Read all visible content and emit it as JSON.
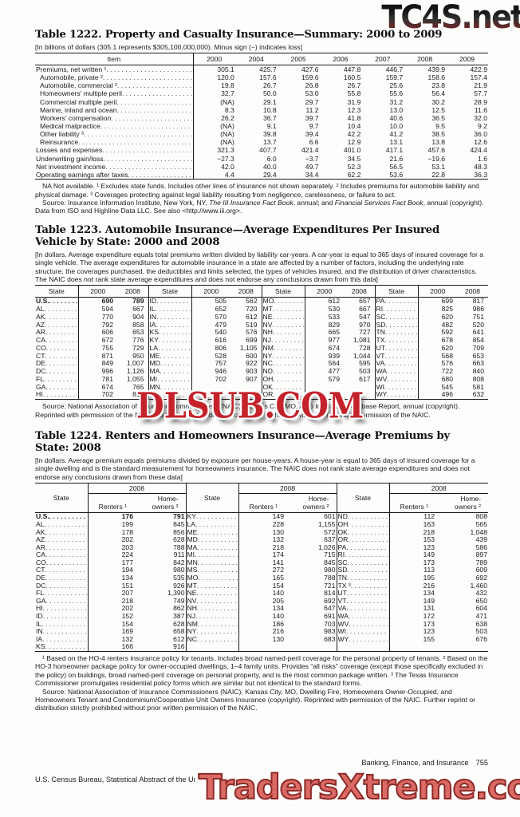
{
  "watermarks": {
    "top_right": "TC4S.net",
    "middle": "DLSUB.COM",
    "bottom": "TradersXtreme.com"
  },
  "table1222": {
    "title": "Table 1222. Property and Casualty Insurance—Summary: 2000 to 2009",
    "note": "[In billions of dollars (305.1 represents $305,100,000,000). Minus sign (−) indicates loss]",
    "col_headers": [
      "Item",
      "2000",
      "2004",
      "2005",
      "2006",
      "2007",
      "2008",
      "2009"
    ],
    "rows": [
      {
        "l": "Premiums, net written ¹",
        "ind": false,
        "v": [
          "305.1",
          "425.7",
          "427.6",
          "447.8",
          "446.7",
          "439.9",
          "422.9"
        ]
      },
      {
        "l": "Automobile, private ²",
        "ind": true,
        "v": [
          "120.0",
          "157.6",
          "159.6",
          "160.5",
          "159.7",
          "158.6",
          "157.4"
        ]
      },
      {
        "l": "Automobile, commercial ²",
        "ind": true,
        "v": [
          "19.8",
          "26.7",
          "26.8",
          "26.7",
          "25.6",
          "23.8",
          "21.9"
        ]
      },
      {
        "l": "Homeowners' multiple peril",
        "ind": true,
        "v": [
          "32.7",
          "50.0",
          "53.0",
          "55.8",
          "55.6",
          "56.4",
          "57.7"
        ]
      },
      {
        "l": "Commercial multiple peril",
        "ind": true,
        "v": [
          "(NA)",
          "29.1",
          "29.7",
          "31.9",
          "31.2",
          "30.2",
          "28.9"
        ]
      },
      {
        "l": "Marine, inland and ocean",
        "ind": true,
        "v": [
          "8.3",
          "10.8",
          "11.2",
          "12.3",
          "13.0",
          "12.5",
          "11.6"
        ]
      },
      {
        "l": "Workers' compensation",
        "ind": true,
        "v": [
          "26.2",
          "36.7",
          "39.7",
          "41.8",
          "40.6",
          "36.5",
          "32.0"
        ]
      },
      {
        "l": "Medical malpractice",
        "ind": true,
        "v": [
          "(NA)",
          "9.1",
          "9.7",
          "10.4",
          "10.0",
          "9.5",
          "9.2"
        ]
      },
      {
        "l": "Other liability ³",
        "ind": true,
        "v": [
          "(NA)",
          "39.8",
          "39.4",
          "42.2",
          "41.2",
          "38.5",
          "36.0"
        ]
      },
      {
        "l": "Reinsurance",
        "ind": true,
        "v": [
          "(NA)",
          "13.7",
          "6.6",
          "12.9",
          "13.1",
          "13.8",
          "12.6"
        ]
      },
      {
        "l": "Losses and expenses",
        "ind": false,
        "v": [
          "321.3",
          "407.7",
          "421.4",
          "401.0",
          "417.1",
          "457.6",
          "424.4"
        ]
      },
      {
        "l": "Underwriting gain/loss",
        "ind": false,
        "v": [
          "−27.3",
          "6.0",
          "−3.7",
          "34.5",
          "21.6",
          "−19.6",
          "1.6"
        ]
      },
      {
        "l": "Net investment income",
        "ind": false,
        "v": [
          "42.0",
          "40.0",
          "49.7",
          "52.3",
          "56.5",
          "53.1",
          "48.3"
        ]
      },
      {
        "l": "Operating earnings after taxes",
        "ind": false,
        "v": [
          "4.4",
          "29.4",
          "34.4",
          "62.2",
          "53.6",
          "22.8",
          "36.3"
        ]
      }
    ],
    "footnote": "NA Not available. ¹ Excludes state funds. Includes other lines of insurance not shown separately. ² Includes premiums for automobile liability and physical damage. ³ Coverages protecting against legal liability resulting from negligence, carelessness, or failure to act.",
    "source_parts": {
      "p0": "Source: Insurance Information Institute, New York, NY, ",
      "p1": "The III Insurance Fact Book",
      "p2": ", annual; and ",
      "p3": "Financial Services Fact Book",
      "p4": ", annual (copyright). Data from ISO and Highline Data LLC. See also <http://www.iii.org>."
    }
  },
  "table1223": {
    "title_l1": "Table 1223. Automobile Insurance—Average Expenditures Per Insured",
    "title_l2": "Vehicle by State: 2000 and 2008",
    "note": "[In dollars. Average expenditure equals total premiums written divided by liability car-years. A car-year is equal to 365 days of insured coverage for a single vehicle. The average expenditures for automobile insurance in a state are affected by a number of factors, including the underlying rate structure, the coverages purchased, the deductibles and limits selected, the types of vehicles insured, and the distribution of driver characteristics. The NAIC does not rank state average expenditures and does not endorse any conclusions drawn from this data]",
    "header": {
      "state": "State",
      "y2000": "2000",
      "y2008": "2008"
    },
    "rows": [
      [
        "U.S.",
        "690",
        "789",
        "ID",
        "505",
        "562",
        "MO",
        "612",
        "657",
        "PA",
        "699",
        "817"
      ],
      [
        "AL",
        "594",
        "667",
        "IL",
        "652",
        "720",
        "MT",
        "530",
        "667",
        "RI",
        "825",
        "986"
      ],
      [
        "AK",
        "770",
        "904",
        "IN",
        "570",
        "612",
        "NE",
        "533",
        "547",
        "SC",
        "620",
        "751"
      ],
      [
        "AZ",
        "792",
        "858",
        "IA",
        "479",
        "519",
        "NV",
        "829",
        "970",
        "SD",
        "482",
        "520"
      ],
      [
        "AR",
        "606",
        "653",
        "KS",
        "540",
        "576",
        "NH",
        "665",
        "727",
        "TN",
        "592",
        "641"
      ],
      [
        "CA",
        "672",
        "776",
        "KY",
        "616",
        "699",
        "NJ",
        "977",
        "1,081",
        "TX",
        "678",
        "854"
      ],
      [
        "CO",
        "755",
        "729",
        "LA",
        "806",
        "1,105",
        "NM",
        "674",
        "728",
        "UT",
        "620",
        "709"
      ],
      [
        "CT",
        "871",
        "950",
        "ME",
        "528",
        "600",
        "NY",
        "939",
        "1,044",
        "VT",
        "568",
        "653"
      ],
      [
        "DE",
        "849",
        "1,007",
        "MD",
        "757",
        "922",
        "NC",
        "564",
        "595",
        "VA",
        "576",
        "663"
      ],
      [
        "DC",
        "996",
        "1,126",
        "MA",
        "946",
        "903",
        "ND",
        "477",
        "503",
        "WA",
        "722",
        "840"
      ],
      [
        "FL",
        "781",
        "1,055",
        "MI",
        "702",
        "907",
        "OH",
        "579",
        "617",
        "WV",
        "680",
        "808"
      ],
      [
        "GA",
        "674",
        "765",
        "MN",
        "",
        "",
        "OK",
        "",
        "",
        "WI",
        "545",
        "581"
      ],
      [
        "HI",
        "702",
        "816",
        "MS",
        "",
        "",
        "OR",
        "",
        "",
        "WY",
        "496",
        "632"
      ]
    ],
    "source": "Source: National Association of Insurance Commissioners (NAIC), Kansas City, MO, Auto Insurance Database Report, annual (copyright). Reprinted with permission of the NAIC. Further reprint or distribution strictly prohibited without prior written permission of the NAIC."
  },
  "table1224": {
    "title_l1": "Table 1224. Renters and Homeowners Insurance—Average Premiums by",
    "title_l2": "State: 2008",
    "note": "[In dollars. Average premium equals premiums divided by exposure per house-years. A house-year is equal to 365 days of insured coverage for a single dwelling and is the standard measurement for homeowners insurance. The NAIC does not rank state average expenditures and does not endorse any conclusions drawn from these data]",
    "header": {
      "state": "State",
      "year": "2008",
      "renters": "Renters ¹",
      "homeowners": "Home-\nowners ²"
    },
    "rows": [
      [
        "U.S.",
        "176",
        "791",
        "KY",
        "149",
        "601",
        "ND",
        "112",
        "808"
      ],
      [
        "AL",
        "199",
        "845",
        "LA",
        "228",
        "1,155",
        "OH",
        "163",
        "565"
      ],
      [
        "AK",
        "178",
        "856",
        "ME",
        "130",
        "572",
        "OK",
        "218",
        "1,048"
      ],
      [
        "AZ",
        "202",
        "628",
        "MD",
        "132",
        "637",
        "OR",
        "153",
        "439"
      ],
      [
        "AR",
        "203",
        "788",
        "MA",
        "218",
        "1,026",
        "PA",
        "123",
        "586"
      ],
      [
        "CA",
        "224",
        "911",
        "MI",
        "174",
        "715",
        "RI",
        "149",
        "897"
      ],
      [
        "CO",
        "177",
        "842",
        "MN",
        "141",
        "845",
        "SC",
        "173",
        "789"
      ],
      [
        "CT",
        "194",
        "980",
        "MS",
        "272",
        "980",
        "SD",
        "113",
        "609"
      ],
      [
        "DE",
        "134",
        "535",
        "MO",
        "165",
        "788",
        "TN",
        "195",
        "692"
      ],
      [
        "DC",
        "151",
        "926",
        "MT",
        "154",
        "721",
        "TX ³",
        "216",
        "1,460"
      ],
      [
        "FL",
        "207",
        "1,390",
        "NE",
        "140",
        "814",
        "UT",
        "134",
        "432"
      ],
      [
        "GA",
        "218",
        "749",
        "NV",
        "205",
        "692",
        "VT",
        "149",
        "650"
      ],
      [
        "HI",
        "202",
        "862",
        "NH",
        "134",
        "647",
        "VA",
        "131",
        "604"
      ],
      [
        "ID",
        "152",
        "387",
        "NJ",
        "140",
        "691",
        "WA",
        "172",
        "471"
      ],
      [
        "IL",
        "154",
        "628",
        "NM",
        "186",
        "703",
        "WV",
        "173",
        "638"
      ],
      [
        "IN",
        "169",
        "658",
        "NY",
        "216",
        "983",
        "WI",
        "123",
        "503"
      ],
      [
        "IA",
        "132",
        "612",
        "NC",
        "130",
        "683",
        "WY",
        "155",
        "676"
      ],
      [
        "KS",
        "166",
        "916",
        "",
        "",
        "",
        "",
        "",
        ""
      ]
    ],
    "footnote": "¹ Based on the HO-4 renters insurance policy for tenants. Includes broad named-peril coverage for the personal property of tenants. ² Based on the HO-3 homeowner package policy for owner-occupied dwellings, 1–4 family units. Provides “all risks” coverage (except those specifically excluded in the policy) on buildings, broad named-peril coverage on personal property, and is the most common package written. ³ The Texas Insurance Commissioner promulgates residential policy forms which are similar but not identical to the standard forms.",
    "source": "Source: National Association of Insurance Commissioners (NAIC), Kansas City, MO, Dwelling Fire, Homeowners Owner-Occupied, and Homeowners Tenant and Condominium/Cooperative Unit Owners Insurance (copyright). Reprinted with permission of the NAIC. Further reprint or distribution strictly prohibited without prior written permission of the NAIC."
  },
  "footer": {
    "section": "Banking, Finance, and Insurance",
    "page": "755",
    "imprint": "U.S. Census Bureau, Statistical Abstract of the United States: 2012"
  }
}
